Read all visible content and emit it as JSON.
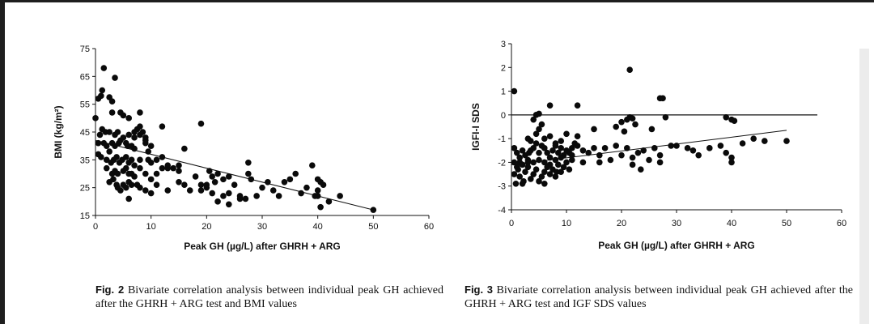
{
  "chart_data": [
    {
      "type": "scatter",
      "title": "",
      "xlabel": "Peak GH (µg/L) after GHRH + ARG",
      "ylabel": "BMI (kg/m²)",
      "xlim": [
        0,
        60
      ],
      "ylim": [
        15,
        75
      ],
      "xticks": [
        "0",
        "10",
        "20",
        "30",
        "40",
        "50",
        "60"
      ],
      "yticks": [
        "15",
        "25",
        "35",
        "45",
        "55",
        "65",
        "75"
      ],
      "trendline": {
        "x": [
          0,
          50
        ],
        "y": [
          42,
          17
        ]
      },
      "points": [
        [
          1.5,
          68
        ],
        [
          3.5,
          64.5
        ],
        [
          0.5,
          57
        ],
        [
          1,
          58
        ],
        [
          1.2,
          60
        ],
        [
          2.5,
          57.5
        ],
        [
          3,
          56
        ],
        [
          0,
          50
        ],
        [
          5,
          51
        ],
        [
          3,
          52
        ],
        [
          4.5,
          52
        ],
        [
          6,
          50
        ],
        [
          8,
          52
        ],
        [
          1.2,
          46
        ],
        [
          1.8,
          45
        ],
        [
          0.8,
          44
        ],
        [
          2.5,
          45
        ],
        [
          3.5,
          44
        ],
        [
          4,
          45
        ],
        [
          5,
          43
        ],
        [
          6,
          44
        ],
        [
          7,
          45
        ],
        [
          8,
          44
        ],
        [
          9,
          43
        ],
        [
          7.5,
          46
        ],
        [
          8.5,
          45
        ],
        [
          12,
          47
        ],
        [
          19,
          48
        ],
        [
          0.5,
          41
        ],
        [
          1.5,
          41
        ],
        [
          2,
          40
        ],
        [
          2.5,
          38
        ],
        [
          3,
          41
        ],
        [
          3.5,
          40
        ],
        [
          4.2,
          41
        ],
        [
          4.5,
          42
        ],
        [
          5.5,
          41
        ],
        [
          5.8,
          40
        ],
        [
          6.5,
          40
        ],
        [
          7,
          39
        ],
        [
          9,
          41
        ],
        [
          10,
          40
        ],
        [
          0.5,
          37
        ],
        [
          1,
          36
        ],
        [
          2,
          35
        ],
        [
          2.8,
          34
        ],
        [
          3.3,
          35
        ],
        [
          3.8,
          36
        ],
        [
          4.3,
          34
        ],
        [
          4.8,
          35
        ],
        [
          5.5,
          36
        ],
        [
          6,
          34
        ],
        [
          6.5,
          35
        ],
        [
          7,
          33
        ],
        [
          8,
          35
        ],
        [
          9.5,
          35
        ],
        [
          10,
          34
        ],
        [
          11,
          35
        ],
        [
          12,
          36
        ],
        [
          13,
          33
        ],
        [
          14,
          32
        ],
        [
          15,
          33
        ],
        [
          16,
          39
        ],
        [
          18,
          29
        ],
        [
          2,
          32
        ],
        [
          3,
          30
        ],
        [
          3.5,
          31
        ],
        [
          4,
          30
        ],
        [
          5,
          31
        ],
        [
          5.5,
          32
        ],
        [
          6,
          30
        ],
        [
          6.5,
          30
        ],
        [
          7,
          29
        ],
        [
          8,
          32
        ],
        [
          9,
          30
        ],
        [
          10,
          28
        ],
        [
          11,
          30
        ],
        [
          12,
          32
        ],
        [
          13,
          32
        ],
        [
          2.5,
          27
        ],
        [
          3.2,
          28
        ],
        [
          3.8,
          26
        ],
        [
          4,
          25
        ],
        [
          5,
          26
        ],
        [
          5.5,
          25
        ],
        [
          6,
          27
        ],
        [
          6.5,
          26
        ],
        [
          8,
          25
        ],
        [
          9,
          24
        ],
        [
          10,
          23
        ],
        [
          11,
          26
        ],
        [
          13,
          24
        ],
        [
          15,
          27
        ],
        [
          16,
          26
        ],
        [
          17,
          24
        ],
        [
          19,
          26
        ],
        [
          20,
          25
        ],
        [
          21,
          23
        ],
        [
          23,
          22
        ],
        [
          24,
          23
        ],
        [
          4.5,
          24
        ],
        [
          6,
          21
        ],
        [
          7.5,
          26
        ],
        [
          19,
          24
        ],
        [
          20,
          26
        ],
        [
          20.5,
          31
        ],
        [
          21,
          29
        ],
        [
          21.5,
          27
        ],
        [
          22,
          30
        ],
        [
          23,
          28
        ],
        [
          24,
          29
        ],
        [
          25,
          26
        ],
        [
          26,
          22
        ],
        [
          27,
          21
        ],
        [
          27.5,
          30
        ],
        [
          28,
          28
        ],
        [
          27.5,
          34
        ],
        [
          30,
          25
        ],
        [
          32,
          24
        ],
        [
          33,
          22
        ],
        [
          35,
          28
        ],
        [
          36,
          30
        ],
        [
          38,
          25
        ],
        [
          39,
          33
        ],
        [
          40,
          28
        ],
        [
          40.5,
          27
        ],
        [
          40,
          24
        ],
        [
          41,
          26
        ],
        [
          40,
          22
        ],
        [
          42,
          20
        ],
        [
          44,
          22
        ],
        [
          40.5,
          18
        ],
        [
          50,
          17
        ],
        [
          22,
          20
        ],
        [
          24,
          19
        ],
        [
          26,
          21
        ],
        [
          29,
          22
        ],
        [
          31,
          27
        ],
        [
          34,
          27
        ],
        [
          37,
          23
        ],
        [
          39.5,
          22
        ],
        [
          8,
          47
        ],
        [
          7,
          43
        ],
        [
          9.5,
          38
        ],
        [
          9,
          42
        ],
        [
          15,
          31
        ]
      ]
    },
    {
      "type": "scatter",
      "title": "",
      "xlabel": "Peak GH (µg/L) after GHRH + ARG",
      "ylabel": "IGFI-I SDS",
      "xlim": [
        0,
        60
      ],
      "ylim": [
        -4,
        3
      ],
      "xticks": [
        "0",
        "10",
        "20",
        "30",
        "40",
        "50",
        "60"
      ],
      "yticks": [
        "-4",
        "-3",
        "-2",
        "-1",
        "0",
        "1",
        "2",
        "3"
      ],
      "refline_y": 0,
      "trendline": {
        "x": [
          0,
          50
        ],
        "y": [
          -2.1,
          -0.65
        ]
      },
      "points": [
        [
          0.5,
          1
        ],
        [
          21.5,
          1.9
        ],
        [
          27,
          0.7
        ],
        [
          27.5,
          0.7
        ],
        [
          7,
          0.4
        ],
        [
          12,
          0.4
        ],
        [
          5,
          0.05
        ],
        [
          0.5,
          -1.4
        ],
        [
          1,
          -1.6
        ],
        [
          1.5,
          -1.8
        ],
        [
          2,
          -1.5
        ],
        [
          2.5,
          -1.7
        ],
        [
          3,
          -1.9
        ],
        [
          3.5,
          -1.5
        ],
        [
          4,
          -1.4
        ],
        [
          4.5,
          -1.2
        ],
        [
          5,
          -1.6
        ],
        [
          5.5,
          -1.3
        ],
        [
          6,
          -1.4
        ],
        [
          6.5,
          -1.6
        ],
        [
          7,
          -1.8
        ],
        [
          7.5,
          -1.5
        ],
        [
          8,
          -1.3
        ],
        [
          8.5,
          -1.6
        ],
        [
          9,
          -1.4
        ],
        [
          9.5,
          -1.7
        ],
        [
          10,
          -1.5
        ],
        [
          10.5,
          -1.6
        ],
        [
          11,
          -1.4
        ],
        [
          11.5,
          -1.2
        ],
        [
          12,
          -1.3
        ],
        [
          13,
          -1.5
        ],
        [
          14,
          -1.6
        ],
        [
          15,
          -1.4
        ],
        [
          16,
          -1.7
        ],
        [
          17,
          -1.4
        ],
        [
          18,
          -1.9
        ],
        [
          19,
          -1.3
        ],
        [
          20,
          -1.7
        ],
        [
          21,
          -1.4
        ],
        [
          22,
          -1.8
        ],
        [
          23,
          -1.6
        ],
        [
          24,
          -1.5
        ],
        [
          25,
          -1.9
        ],
        [
          26,
          -1.4
        ],
        [
          27,
          -1.7
        ],
        [
          29,
          -1.3
        ],
        [
          30,
          -1.3
        ],
        [
          32,
          -1.4
        ],
        [
          33,
          -1.5
        ],
        [
          34,
          -1.7
        ],
        [
          36,
          -1.4
        ],
        [
          38,
          -1.3
        ],
        [
          39,
          -1.6
        ],
        [
          40,
          -1.8
        ],
        [
          40,
          -2.0
        ],
        [
          42,
          -1.2
        ],
        [
          44,
          -1.0
        ],
        [
          46,
          -1.1
        ],
        [
          50,
          -1.1
        ],
        [
          0.5,
          -2.5
        ],
        [
          1,
          -2.2
        ],
        [
          1.5,
          -2.6
        ],
        [
          2,
          -2.9
        ],
        [
          2.5,
          -2.4
        ],
        [
          3,
          -2.2
        ],
        [
          3.5,
          -2.7
        ],
        [
          4,
          -2.5
        ],
        [
          4.5,
          -2.3
        ],
        [
          5,
          -2.8
        ],
        [
          5.5,
          -2.6
        ],
        [
          6,
          -2.4
        ],
        [
          6.5,
          -2.2
        ],
        [
          7,
          -2.5
        ],
        [
          7.5,
          -2.3
        ],
        [
          8,
          -2.6
        ],
        [
          8.5,
          -2.1
        ],
        [
          9,
          -2.4
        ],
        [
          9.5,
          -2.2
        ],
        [
          10,
          -2.0
        ],
        [
          10.5,
          -2.3
        ],
        [
          11,
          -1.9
        ],
        [
          0.5,
          -2.0
        ],
        [
          1.5,
          -2.0
        ],
        [
          2,
          -2.1
        ],
        [
          3,
          -2.0
        ],
        [
          4,
          -2.0
        ],
        [
          5,
          -1.9
        ],
        [
          6,
          -2.0
        ],
        [
          7,
          -2.1
        ],
        [
          8,
          -1.9
        ],
        [
          9,
          -1.8
        ],
        [
          3,
          -1.0
        ],
        [
          3.5,
          -1.1
        ],
        [
          4.5,
          -0.8
        ],
        [
          5,
          -0.6
        ],
        [
          5.5,
          -0.4
        ],
        [
          6,
          -1.0
        ],
        [
          7,
          -0.9
        ],
        [
          8,
          -1.2
        ],
        [
          9,
          -1.1
        ],
        [
          10,
          -0.8
        ],
        [
          12,
          -0.9
        ],
        [
          15,
          -0.6
        ],
        [
          19,
          -0.5
        ],
        [
          20,
          -0.3
        ],
        [
          21,
          -0.2
        ],
        [
          21.5,
          -0.1
        ],
        [
          22,
          -0.15
        ],
        [
          22.5,
          -0.4
        ],
        [
          20.5,
          -0.7
        ],
        [
          28,
          -0.1
        ],
        [
          39,
          -0.1
        ],
        [
          40,
          -0.2
        ],
        [
          40.5,
          -0.25
        ],
        [
          4,
          -0.2
        ],
        [
          4.5,
          0.0
        ],
        [
          25.5,
          -0.6
        ],
        [
          23.5,
          -2.3
        ],
        [
          13,
          -2.0
        ],
        [
          16,
          -2.0
        ],
        [
          22,
          -2.1
        ],
        [
          27,
          -2.0
        ],
        [
          2.2,
          -2.8
        ],
        [
          1.2,
          -2.3
        ],
        [
          0.8,
          -2.9
        ],
        [
          6,
          -2.9
        ],
        [
          3.2,
          -1.6
        ],
        [
          11,
          -1.7
        ],
        [
          8.2,
          -2.4
        ]
      ]
    }
  ],
  "captions": {
    "left": {
      "label": "Fig. 2",
      "text": "Bivariate correlation analysis between individual peak GH achieved after the GHRH + ARG test and BMI values"
    },
    "right": {
      "label": "Fig. 3",
      "text": "Bivariate correlation analysis between individual peak GH achieved after the GHRH + ARG test and IGF SDS values"
    }
  }
}
